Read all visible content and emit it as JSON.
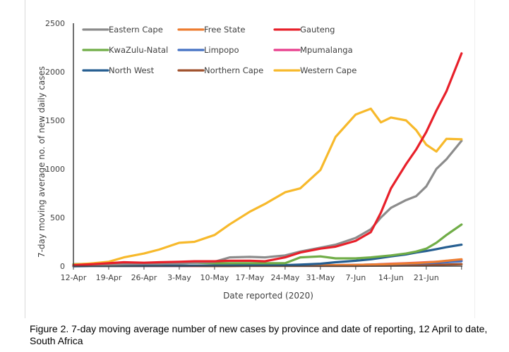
{
  "caption": "Figure 2. 7-day moving average number of new cases by province and date of reporting, 12 April to date, South Africa",
  "chart_data": {
    "type": "line",
    "title": "",
    "xlabel": "Date reported (2020)",
    "ylabel": "7-day moving average no. of new daily cases",
    "ylim": [
      0,
      2500
    ],
    "yticks": [
      0,
      500,
      1000,
      1500,
      2000,
      2500
    ],
    "ytick_labels": [
      "0",
      "500",
      "1000",
      "1500",
      "2000",
      "2500"
    ],
    "x_start": "12-Apr",
    "x_days_range": [
      0,
      77
    ],
    "xticks_days": [
      0,
      7,
      14,
      21,
      28,
      35,
      42,
      49,
      56,
      63,
      70
    ],
    "xtick_labels": [
      "12-Apr",
      "19-Apr",
      "26-Apr",
      "3-May",
      "10-May",
      "17-May",
      "24-May",
      "31-May",
      "7-Jun",
      "14-Jun",
      "21-Jun"
    ],
    "grid": false,
    "legend_position": "top-left",
    "x": [
      0,
      4,
      7,
      10,
      14,
      17,
      21,
      24,
      28,
      31,
      35,
      38,
      42,
      45,
      49,
      52,
      56,
      59,
      61,
      63,
      66,
      68,
      70,
      72,
      74,
      77
    ],
    "series": [
      {
        "name": "Eastern Cape",
        "color": "#8c8c8c",
        "values": [
          5,
          10,
          15,
          20,
          25,
          25,
          30,
          35,
          45,
          90,
          95,
          90,
          110,
          150,
          190,
          220,
          290,
          380,
          500,
          600,
          680,
          720,
          820,
          1000,
          1100,
          1290
        ]
      },
      {
        "name": "Free State",
        "color": "#ed7d31",
        "values": [
          0,
          2,
          3,
          3,
          4,
          4,
          5,
          5,
          5,
          5,
          5,
          5,
          5,
          5,
          8,
          10,
          12,
          15,
          18,
          22,
          28,
          32,
          38,
          45,
          55,
          70
        ]
      },
      {
        "name": "Gauteng",
        "color": "#e8202a",
        "values": [
          10,
          20,
          30,
          40,
          35,
          40,
          45,
          50,
          50,
          55,
          55,
          50,
          90,
          140,
          180,
          200,
          260,
          350,
          550,
          800,
          1050,
          1200,
          1380,
          1600,
          1800,
          2190
        ]
      },
      {
        "name": "KwaZulu-Natal",
        "color": "#70ad47",
        "values": [
          20,
          25,
          25,
          30,
          30,
          35,
          30,
          35,
          30,
          30,
          30,
          30,
          30,
          90,
          100,
          80,
          80,
          90,
          100,
          110,
          130,
          150,
          180,
          240,
          320,
          428
        ]
      },
      {
        "name": "Limpopo",
        "color": "#4472c4",
        "values": [
          0,
          1,
          2,
          2,
          3,
          3,
          3,
          4,
          4,
          5,
          5,
          5,
          6,
          6,
          8,
          10,
          12,
          15,
          18,
          20,
          24,
          28,
          30,
          35,
          40,
          50
        ]
      },
      {
        "name": "Mpumalanga",
        "color": "#e83e8c",
        "values": [
          0,
          1,
          2,
          2,
          2,
          3,
          3,
          3,
          4,
          4,
          4,
          5,
          5,
          6,
          8,
          10,
          12,
          15,
          20,
          25,
          30,
          35,
          40,
          45,
          50,
          60
        ]
      },
      {
        "name": "North West",
        "color": "#255e91",
        "values": [
          0,
          2,
          3,
          3,
          4,
          5,
          5,
          5,
          6,
          6,
          7,
          8,
          10,
          15,
          25,
          40,
          55,
          70,
          85,
          100,
          120,
          140,
          155,
          175,
          195,
          220
        ]
      },
      {
        "name": "Northern Cape",
        "color": "#a0522d",
        "values": [
          0,
          1,
          1,
          1,
          1,
          1,
          1,
          1,
          1,
          1,
          2,
          2,
          2,
          2,
          2,
          3,
          3,
          4,
          5,
          6,
          8,
          10,
          12,
          14,
          16,
          20
        ]
      },
      {
        "name": "Western Cape",
        "color": "#f7b92b",
        "values": [
          15,
          30,
          45,
          90,
          130,
          170,
          240,
          250,
          320,
          430,
          560,
          640,
          760,
          800,
          990,
          1330,
          1560,
          1620,
          1480,
          1530,
          1500,
          1400,
          1250,
          1180,
          1310,
          1305
        ]
      }
    ]
  }
}
